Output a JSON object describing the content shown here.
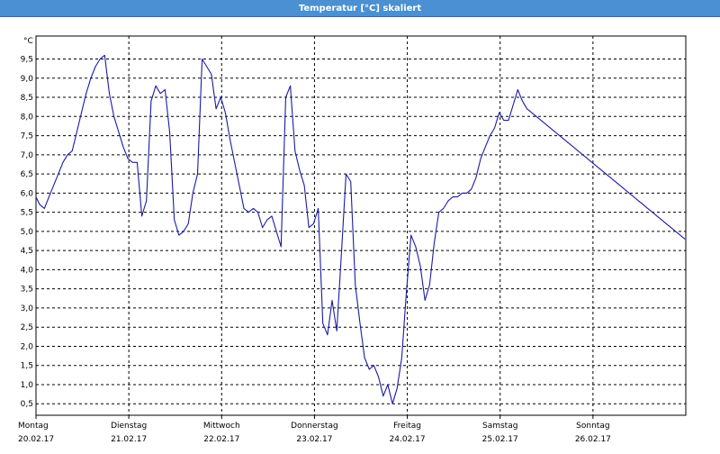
{
  "window": {
    "title": "Temperatur [°C] skaliert"
  },
  "chart_data": {
    "type": "line",
    "title": "Temperatur [°C] skaliert",
    "ylabel": "°C",
    "xlabel": "",
    "ylim": [
      0.2,
      10.1
    ],
    "yticks": [
      0.5,
      1.0,
      1.5,
      2.0,
      2.5,
      3.0,
      3.5,
      4.0,
      4.5,
      5.0,
      5.5,
      6.0,
      6.5,
      7.0,
      7.5,
      8.0,
      8.5,
      9.0,
      9.5
    ],
    "ytick_labels": [
      "0,5",
      "1,0",
      "1,5",
      "2,0",
      "2,5",
      "3,0",
      "3,5",
      "4,0",
      "4,5",
      "5,0",
      "5,5",
      "6,0",
      "6,5",
      "7,0",
      "7,5",
      "8,0",
      "8,5",
      "9,0",
      "9,5"
    ],
    "xlim": [
      0,
      7
    ],
    "day_ticks": [
      {
        "day": "Montag",
        "date": "20.02.17"
      },
      {
        "day": "Dienstag",
        "date": "21.02.17"
      },
      {
        "day": "Mittwoch",
        "date": "22.02.17"
      },
      {
        "day": "Donnerstag",
        "date": "23.02.17"
      },
      {
        "day": "Freitag",
        "date": "24.02.17"
      },
      {
        "day": "Samstag",
        "date": "25.02.17"
      },
      {
        "day": "Sonntag",
        "date": "26.02.17"
      }
    ],
    "grid": true,
    "line_color": "#1a1aa6",
    "series": [
      {
        "x": [
          0.0,
          0.04,
          0.09,
          0.14,
          0.19,
          0.24,
          0.29,
          0.34,
          0.39,
          0.44,
          0.49,
          0.54,
          0.59,
          0.64,
          0.69,
          0.74,
          0.79,
          0.84,
          0.89,
          0.94,
          0.99,
          1.04,
          1.09,
          1.14,
          1.19,
          1.24,
          1.29,
          1.34,
          1.39,
          1.44,
          1.49,
          1.54,
          1.59,
          1.64,
          1.69,
          1.74,
          1.79,
          1.84,
          1.89,
          1.94,
          1.99,
          2.04,
          2.09,
          2.14,
          2.19,
          2.24,
          2.29,
          2.34,
          2.39,
          2.44,
          2.49,
          2.54,
          2.59,
          2.64,
          2.69,
          2.74,
          2.79,
          2.84,
          2.89,
          2.94,
          2.99,
          3.04,
          3.09,
          3.14,
          3.19,
          3.24,
          3.29,
          3.34,
          3.39,
          3.44,
          3.49,
          3.54,
          3.59,
          3.64,
          3.69,
          3.74,
          3.79,
          3.84,
          3.89,
          3.94,
          3.99,
          4.04,
          4.09,
          4.14,
          4.19,
          4.24,
          4.29,
          4.34,
          4.39,
          4.44,
          4.49,
          4.54,
          4.59,
          4.64,
          4.69,
          4.74,
          4.79,
          4.84,
          4.89,
          4.94,
          4.99,
          5.04,
          5.09,
          5.14,
          5.19,
          5.24,
          5.29,
          5.34,
          5.39,
          5.44,
          5.49,
          5.54,
          5.59,
          5.64,
          5.69,
          5.74,
          5.79,
          5.84,
          5.89,
          5.94,
          5.99,
          6.04,
          6.09,
          6.14,
          6.19,
          6.24,
          6.29,
          6.34,
          6.39,
          6.44,
          6.49,
          6.54,
          6.59,
          6.64,
          6.69,
          6.74,
          6.79,
          6.84,
          6.89,
          6.94,
          6.99
        ],
        "y": [
          5.9,
          5.7,
          5.6,
          5.9,
          6.2,
          6.5,
          6.8,
          7.0,
          7.1,
          7.6,
          8.1,
          8.6,
          9.0,
          9.3,
          9.5,
          9.6,
          8.6,
          8.0,
          7.6,
          7.2,
          6.9,
          6.8,
          6.8,
          5.4,
          5.8,
          8.4,
          8.8,
          8.6,
          8.7,
          7.6,
          5.3,
          4.9,
          5.0,
          5.2,
          6.0,
          6.5,
          9.5,
          9.3,
          9.1,
          8.2,
          8.5,
          8.1,
          7.4,
          6.8,
          6.2,
          5.6,
          5.5,
          5.6,
          5.5,
          5.1,
          5.3,
          5.4,
          5.0,
          4.6,
          8.5,
          8.8,
          7.1,
          6.6,
          6.2,
          5.1,
          5.2,
          5.6,
          2.6,
          2.3,
          3.2,
          2.4,
          4.4,
          6.5,
          6.3,
          3.6,
          2.6,
          1.7,
          1.4,
          1.5,
          1.2,
          0.7,
          1.0,
          0.5,
          0.9,
          1.7,
          3.4,
          4.9,
          4.6,
          4.1,
          3.2,
          3.6,
          4.7,
          5.5,
          5.6,
          5.8,
          5.9,
          5.9,
          6.0,
          6.0,
          6.1,
          6.4,
          6.9,
          7.2,
          7.5,
          7.7,
          8.1,
          7.9,
          7.9,
          8.3,
          8.7,
          8.4,
          8.2,
          8.1,
          8.0,
          7.9,
          7.8,
          7.7,
          7.6,
          7.5,
          7.4,
          7.3,
          7.2,
          7.1,
          7.0,
          6.9,
          6.8,
          6.7,
          6.6,
          6.5,
          6.4,
          6.3,
          6.2,
          6.1,
          6.0,
          5.9,
          5.8,
          5.7,
          5.6,
          5.5,
          5.4,
          5.3,
          5.2,
          5.1,
          5.0,
          4.9,
          4.8
        ]
      }
    ]
  }
}
